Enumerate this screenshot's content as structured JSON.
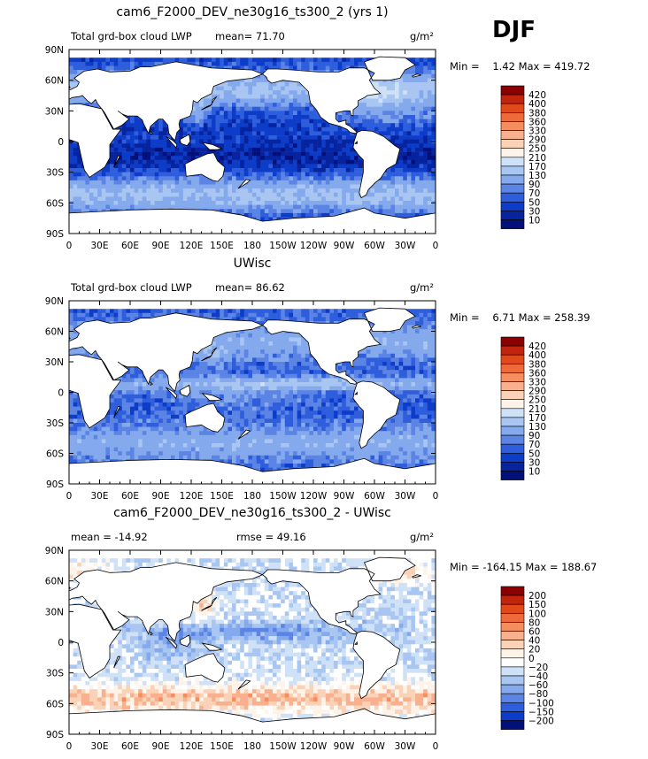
{
  "season_label": "DJF",
  "chart_data": [
    {
      "type": "heatmap",
      "title": "cam6_F2000_DEV_ne30g16_ts300_2 (yrs 1)",
      "left_label": "Total grd-box cloud LWP",
      "center_label": "mean=  71.70",
      "right_label": "g/m²",
      "stats": {
        "min": "1.42",
        "max": "419.72"
      },
      "min_label": "Min =",
      "max_label": "Max =",
      "stats_text": "Min =    1.42 Max = 419.72",
      "x_ticks": [
        "0",
        "30E",
        "60E",
        "90E",
        "120E",
        "150E",
        "180",
        "150W",
        "120W",
        "90W",
        "60W",
        "30W",
        "0"
      ],
      "y_ticks": [
        "90N",
        "60N",
        "30N",
        "0",
        "30S",
        "60S",
        "90S"
      ],
      "colorbar_labels": [
        "420",
        "400",
        "380",
        "360",
        "330",
        "290",
        "250",
        "210",
        "170",
        "130",
        "90",
        "70",
        "50",
        "30",
        "10"
      ],
      "colorbar_colors": [
        "#8b0000",
        "#c1250e",
        "#e04a1a",
        "#ef6a3a",
        "#f58d5e",
        "#f8b08e",
        "#f9d2b7",
        "#fdf3e8",
        "#cfe1f7",
        "#a8c6f1",
        "#84a9ec",
        "#5b84e4",
        "#2e5edc",
        "#0d3cc8",
        "#07239e",
        "#04107a"
      ],
      "field": "lwp"
    },
    {
      "type": "heatmap",
      "title": "UWisc",
      "left_label": "Total grd-box cloud LWP",
      "center_label": "mean=  86.62",
      "right_label": "g/m²",
      "stats": {
        "min": "6.71",
        "max": "258.39"
      },
      "stats_text": "Min =    6.71 Max = 258.39",
      "x_ticks": [
        "0",
        "30E",
        "60E",
        "90E",
        "120E",
        "150E",
        "180",
        "150W",
        "120W",
        "90W",
        "60W",
        "30W",
        "0"
      ],
      "y_ticks": [
        "90N",
        "60N",
        "30N",
        "0",
        "30S",
        "60S",
        "90S"
      ],
      "colorbar_labels": [
        "420",
        "400",
        "380",
        "360",
        "330",
        "290",
        "250",
        "210",
        "170",
        "130",
        "90",
        "70",
        "50",
        "30",
        "10"
      ],
      "colorbar_colors": [
        "#8b0000",
        "#c1250e",
        "#e04a1a",
        "#ef6a3a",
        "#f58d5e",
        "#f8b08e",
        "#f9d2b7",
        "#fdf3e8",
        "#cfe1f7",
        "#a8c6f1",
        "#84a9ec",
        "#5b84e4",
        "#2e5edc",
        "#0d3cc8",
        "#07239e",
        "#04107a"
      ],
      "field": "uwisc"
    },
    {
      "type": "heatmap",
      "title": "cam6_F2000_DEV_ne30g16_ts300_2 - UWisc",
      "left_label": "mean = -14.92",
      "center_label": "rmse =   49.16",
      "right_label": "g/m²",
      "stats": {
        "min": "-164.15",
        "max": "188.67"
      },
      "stats_text": "Min = -164.15 Max = 188.67",
      "x_ticks": [
        "0",
        "30E",
        "60E",
        "90E",
        "120E",
        "150E",
        "180",
        "150W",
        "120W",
        "90W",
        "60W",
        "30W",
        "0"
      ],
      "y_ticks": [
        "90N",
        "60N",
        "30N",
        "0",
        "30S",
        "60S",
        "90S"
      ],
      "colorbar_labels": [
        "200",
        "150",
        "100",
        "80",
        "60",
        "40",
        "20",
        "0",
        "−20",
        "−40",
        "−60",
        "−80",
        "−100",
        "−150",
        "−200"
      ],
      "colorbar_colors": [
        "#8b0000",
        "#c1250e",
        "#e04a1a",
        "#ef6a3a",
        "#f58d5e",
        "#f8b08e",
        "#f9d2b7",
        "#fdf3e8",
        "#ffffff",
        "#cfe1f7",
        "#a8c6f1",
        "#84a9ec",
        "#5b84e4",
        "#2e5edc",
        "#0d3cc8",
        "#04107a"
      ],
      "field": "diff"
    }
  ]
}
